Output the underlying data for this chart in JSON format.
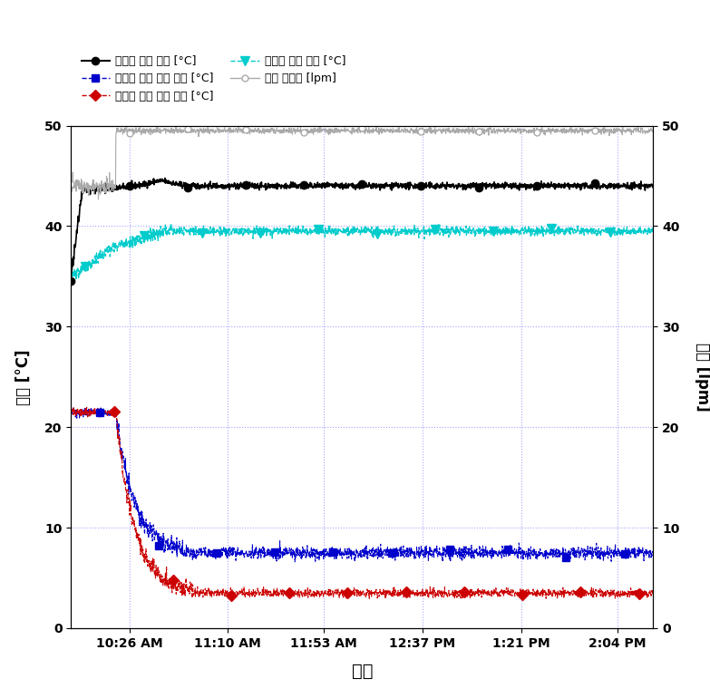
{
  "title": "",
  "xlabel": "시간",
  "ylabel_left": "온도 [°C]",
  "ylabel_right": "유량 [lpm]",
  "ylim_left": [
    0,
    50
  ],
  "ylim_right": [
    0,
    50
  ],
  "yticks_left": [
    0,
    10,
    20,
    30,
    40,
    50
  ],
  "yticks_right": [
    0,
    10,
    20,
    30,
    40,
    50
  ],
  "xtick_labels": [
    "10:26 AM",
    "11:10 AM",
    "11:53 AM",
    "12:37 PM",
    "1:21 PM",
    "2:04 PM"
  ],
  "xtick_positions": [
    26,
    70,
    113,
    157,
    201,
    244
  ],
  "xlim": [
    0,
    260
  ],
  "background_color": "#ffffff",
  "grid_color": "#9999ff",
  "legend_entries": [
    "응첩기 출구 수온 [°C]",
    "증발기 입구 공기 온도 [°C]",
    "증발기 출구 공기 온도 [°C]",
    "응첩기 입구 수온 [°C]",
    "온수 순환량 [lpm]"
  ],
  "line_colors_left": [
    "#000000",
    "#0000cc",
    "#cc0000",
    "#00cccc"
  ],
  "line_color_right": "#aaaaaa",
  "trans": 20,
  "total_minutes": 260,
  "n_points": 2000
}
